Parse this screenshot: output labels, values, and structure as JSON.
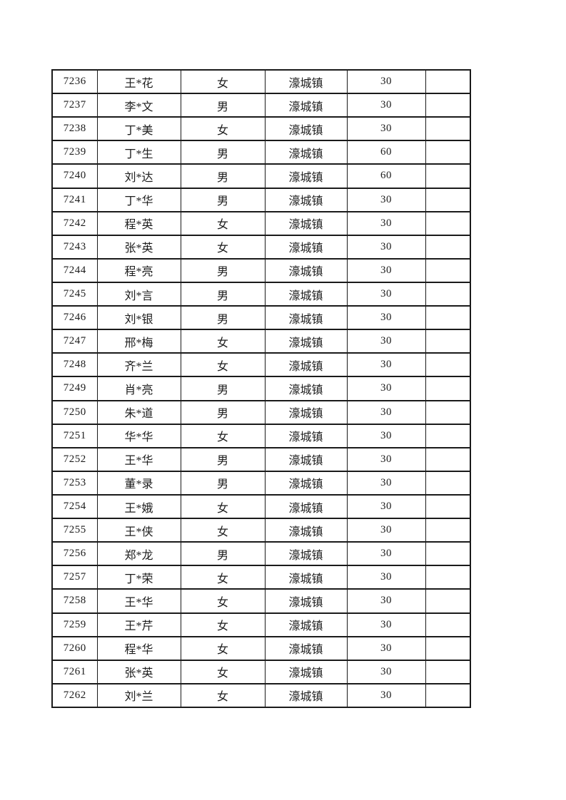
{
  "page": {
    "background": "#ffffff",
    "text_color": "#1c1c1c",
    "border_color": "#1a1a1a"
  },
  "table": {
    "columns": [
      {
        "key": "id",
        "label": ""
      },
      {
        "key": "name",
        "label": ""
      },
      {
        "key": "gender",
        "label": ""
      },
      {
        "key": "town",
        "label": ""
      },
      {
        "key": "amount",
        "label": ""
      },
      {
        "key": "note",
        "label": ""
      }
    ],
    "rows": [
      [
        "7236",
        "王*花",
        "女",
        "濠城镇",
        "30",
        ""
      ],
      [
        "7237",
        "李*文",
        "男",
        "濠城镇",
        "30",
        ""
      ],
      [
        "7238",
        "丁*美",
        "女",
        "濠城镇",
        "30",
        ""
      ],
      [
        "7239",
        "丁*生",
        "男",
        "濠城镇",
        "60",
        ""
      ],
      [
        "7240",
        "刘*达",
        "男",
        "濠城镇",
        "60",
        ""
      ],
      [
        "7241",
        "丁*华",
        "男",
        "濠城镇",
        "30",
        ""
      ],
      [
        "7242",
        "程*英",
        "女",
        "濠城镇",
        "30",
        ""
      ],
      [
        "7243",
        "张*英",
        "女",
        "濠城镇",
        "30",
        ""
      ],
      [
        "7244",
        "程*亮",
        "男",
        "濠城镇",
        "30",
        ""
      ],
      [
        "7245",
        "刘*言",
        "男",
        "濠城镇",
        "30",
        ""
      ],
      [
        "7246",
        "刘*银",
        "男",
        "濠城镇",
        "30",
        ""
      ],
      [
        "7247",
        "邢*梅",
        "女",
        "濠城镇",
        "30",
        ""
      ],
      [
        "7248",
        "齐*兰",
        "女",
        "濠城镇",
        "30",
        ""
      ],
      [
        "7249",
        "肖*亮",
        "男",
        "濠城镇",
        "30",
        ""
      ],
      [
        "7250",
        "朱*道",
        "男",
        "濠城镇",
        "30",
        ""
      ],
      [
        "7251",
        "华*华",
        "女",
        "濠城镇",
        "30",
        ""
      ],
      [
        "7252",
        "王*华",
        "男",
        "濠城镇",
        "30",
        ""
      ],
      [
        "7253",
        "董*录",
        "男",
        "濠城镇",
        "30",
        ""
      ],
      [
        "7254",
        "王*娥",
        "女",
        "濠城镇",
        "30",
        ""
      ],
      [
        "7255",
        "王*侠",
        "女",
        "濠城镇",
        "30",
        ""
      ],
      [
        "7256",
        "郑*龙",
        "男",
        "濠城镇",
        "30",
        ""
      ],
      [
        "7257",
        "丁*荣",
        "女",
        "濠城镇",
        "30",
        ""
      ],
      [
        "7258",
        "王*华",
        "女",
        "濠城镇",
        "30",
        ""
      ],
      [
        "7259",
        "王*芹",
        "女",
        "濠城镇",
        "30",
        ""
      ],
      [
        "7260",
        "程*华",
        "女",
        "濠城镇",
        "30",
        ""
      ],
      [
        "7261",
        "张*英",
        "女",
        "濠城镇",
        "30",
        ""
      ],
      [
        "7262",
        "刘*兰",
        "女",
        "濠城镇",
        "30",
        ""
      ]
    ]
  }
}
